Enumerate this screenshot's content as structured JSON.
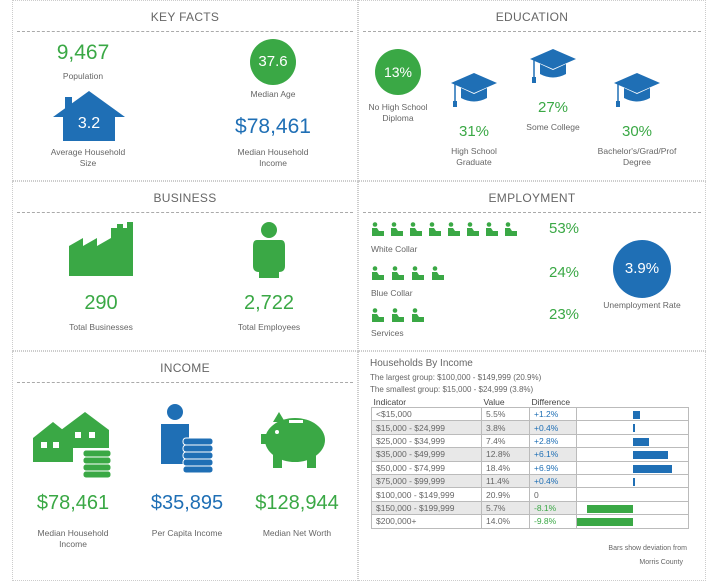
{
  "key_facts": {
    "title": "KEY FACTS",
    "population": "9,467",
    "population_label": "Population",
    "median_age": "37.6",
    "median_age_label": "Median Age",
    "household_size": "3.2",
    "household_size_label": "Average Household Size",
    "median_income": "$78,461",
    "median_income_label": "Median Household Income"
  },
  "education": {
    "title": "EDUCATION",
    "items": [
      {
        "value": "13%",
        "label": "No High School Diploma"
      },
      {
        "value": "31%",
        "label": "High School Graduate"
      },
      {
        "value": "27%",
        "label": "Some College"
      },
      {
        "value": "30%",
        "label": "Bachelor's/Grad/Prof Degree"
      }
    ]
  },
  "business": {
    "title": "BUSINESS",
    "businesses": "290",
    "businesses_label": "Total Businesses",
    "employees": "2,722",
    "employees_label": "Total Employees"
  },
  "employment": {
    "title": "EMPLOYMENT",
    "rows": [
      {
        "label": "White Collar",
        "value": "53%",
        "icons": 8
      },
      {
        "label": "Blue Collar",
        "value": "24%",
        "icons": 4
      },
      {
        "label": "Services",
        "value": "23%",
        "icons": 3
      }
    ],
    "unemployment": "3.9%",
    "unemployment_label": "Unemployment Rate"
  },
  "income": {
    "title": "INCOME",
    "items": [
      {
        "value": "$78,461",
        "label": "Median Household Income"
      },
      {
        "value": "$35,895",
        "label": "Per Capita Income"
      },
      {
        "value": "$128,944",
        "label": "Median Net Worth"
      }
    ]
  },
  "households": {
    "title": "Households By Income",
    "largest": "The largest group: $100,000 - $149,999 (20.9%)",
    "smallest": "The smallest group: $15,000 - $24,999 (3.8%)",
    "headers": [
      "Indicator",
      "Value",
      "Difference"
    ],
    "rows": [
      {
        "indicator": "<$15,000",
        "value": "5.5%",
        "diff": "+1.2%",
        "d": 1.2
      },
      {
        "indicator": "$15,000 - $24,999",
        "value": "3.8%",
        "diff": "+0.4%",
        "d": 0.4
      },
      {
        "indicator": "$25,000 - $34,999",
        "value": "7.4%",
        "diff": "+2.8%",
        "d": 2.8
      },
      {
        "indicator": "$35,000 - $49,999",
        "value": "12.8%",
        "diff": "+6.1%",
        "d": 6.1
      },
      {
        "indicator": "$50,000 - $74,999",
        "value": "18.4%",
        "diff": "+6.9%",
        "d": 6.9
      },
      {
        "indicator": "$75,000 - $99,999",
        "value": "11.4%",
        "diff": "+0.4%",
        "d": 0.4
      },
      {
        "indicator": "$100,000 - $149,999",
        "value": "20.9%",
        "diff": "0",
        "d": 0
      },
      {
        "indicator": "$150,000 - $199,999",
        "value": "5.7%",
        "diff": "-8.1%",
        "d": -8.1
      },
      {
        "indicator": "$200,000+",
        "value": "14.0%",
        "diff": "-9.8%",
        "d": -9.8
      }
    ],
    "note1": "Bars show deviation from",
    "note2": "Morris County"
  },
  "colors": {
    "green": "#3aa845",
    "blue": "#1f6fb5"
  }
}
